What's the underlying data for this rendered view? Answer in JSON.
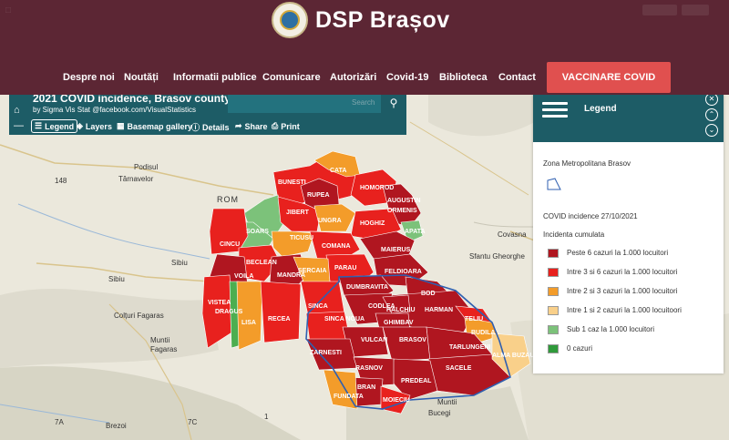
{
  "header": {
    "site_title": "DSP Brașov",
    "nav": [
      "Despre noi",
      "Noutăți",
      "Informatii publice",
      "Comunicare",
      "Autorizări",
      "Covid-19",
      "Biblioteca",
      "Contact"
    ],
    "cta": "VACCINARE COVID"
  },
  "map": {
    "title": "2021 COVID incidence, Brasov county",
    "subtitle": "by Sigma Vis Stat @facebook.com/VisualStatistics",
    "search_placeholder": "Search",
    "toolbar": [
      "Legend",
      "Layers",
      "Basemap gallery",
      "Details",
      "Share",
      "Print"
    ],
    "places": [
      "Podisul",
      "Târnavelor",
      "ROM",
      "Sibiu",
      "Sibiu",
      "Colțuri Fagaras",
      "Muntii",
      "Fagaras",
      "Sfantu Gheorghe",
      "Covasna",
      "Bucegi",
      "Brezoi",
      "Muntii",
      "7A",
      "7C",
      "148",
      "1"
    ],
    "counties": [
      {
        "name": "CATA",
        "color": "#f39c2a"
      },
      {
        "name": "BUNESTI",
        "color": "#e8211e"
      },
      {
        "name": "RUPEA",
        "color": "#b01620"
      },
      {
        "name": "HOMOROD",
        "color": "#e8211e"
      },
      {
        "name": "AUGUSTIN",
        "color": "#b01620"
      },
      {
        "name": "ORMENIS",
        "color": "#b01620"
      },
      {
        "name": "JIBERT",
        "color": "#e8211e"
      },
      {
        "name": "UNGRA",
        "color": "#f39c2a"
      },
      {
        "name": "HOGHIZ",
        "color": "#e8211e"
      },
      {
        "name": "APATA",
        "color": "#7cc27a"
      },
      {
        "name": "SOARS",
        "color": "#7cc27a"
      },
      {
        "name": "TICUSU",
        "color": "#f39c2a"
      },
      {
        "name": "COMANA",
        "color": "#e8211e"
      },
      {
        "name": "MAIERUS",
        "color": "#b01620"
      },
      {
        "name": "CINCU",
        "color": "#e8211e"
      },
      {
        "name": "BECLEAN",
        "color": "#e8211e"
      },
      {
        "name": "MANDRA",
        "color": "#b01620"
      },
      {
        "name": "PARAU",
        "color": "#e8211e"
      },
      {
        "name": "FELDIOARA",
        "color": "#b01620"
      },
      {
        "name": "VOILA",
        "color": "#b01620"
      },
      {
        "name": "SERCAIA",
        "color": "#f39c2a"
      },
      {
        "name": "DUMBRAVITA",
        "color": "#b01620"
      },
      {
        "name": "BOD",
        "color": "#b01620"
      },
      {
        "name": "VISTEA",
        "color": "#e8211e"
      },
      {
        "name": "DRAGUS",
        "color": "#4cae50"
      },
      {
        "name": "LISA",
        "color": "#f39c2a"
      },
      {
        "name": "RECEA",
        "color": "#e8211e"
      },
      {
        "name": "SINCA",
        "color": "#e8211e"
      },
      {
        "name": "SINCA NOUA",
        "color": "#e8211e"
      },
      {
        "name": "CODLEA",
        "color": "#b01620"
      },
      {
        "name": "HARMAN",
        "color": "#b01620"
      },
      {
        "name": "HALCHIU",
        "color": "#b01620"
      },
      {
        "name": "GHIMBAV",
        "color": "#b01620"
      },
      {
        "name": "TELIU",
        "color": "#e8211e"
      },
      {
        "name": "BUDILA",
        "color": "#f39c2a"
      },
      {
        "name": "VULCAN",
        "color": "#b01620"
      },
      {
        "name": "BRASOV",
        "color": "#b01620"
      },
      {
        "name": "TARLUNGENI",
        "color": "#b01620"
      },
      {
        "name": "ZARNESTI",
        "color": "#b01620"
      },
      {
        "name": "SACELE",
        "color": "#b01620"
      },
      {
        "name": "PREDEAL",
        "color": "#b01620"
      },
      {
        "name": "RASNOV",
        "color": "#b01620"
      },
      {
        "name": "BRAN",
        "color": "#b01620"
      },
      {
        "name": "FUNDATA",
        "color": "#f39c2a"
      },
      {
        "name": "MOIECIU",
        "color": "#e8211e"
      },
      {
        "name": "ALMA BUZAU",
        "color": "#f9d08a"
      }
    ]
  },
  "legend": {
    "title": "Legend",
    "layer1": "Zona Metropolitana Brasov",
    "layer2": "COVID incidence 27/10/2021",
    "field": "Incidenta cumulata",
    "classes": [
      {
        "label": "Peste 6 cazuri la 1.000 locuitori",
        "color": "#b01620"
      },
      {
        "label": "Intre 3 si 6 cazuri la 1.000 locuitori",
        "color": "#e8211e"
      },
      {
        "label": "Intre 2 si 3 cazuri la 1.000 locuitori",
        "color": "#f39c2a"
      },
      {
        "label": "Intre 1 si 2 cazuri la 1.000 locuitoori",
        "color": "#f9d08a"
      },
      {
        "label": "Sub 1 caz la 1.000 locuitori",
        "color": "#7cc27a"
      },
      {
        "label": "0 cazuri",
        "color": "#2f9a3a"
      }
    ],
    "metro_outline_color": "#2f5fb0"
  }
}
